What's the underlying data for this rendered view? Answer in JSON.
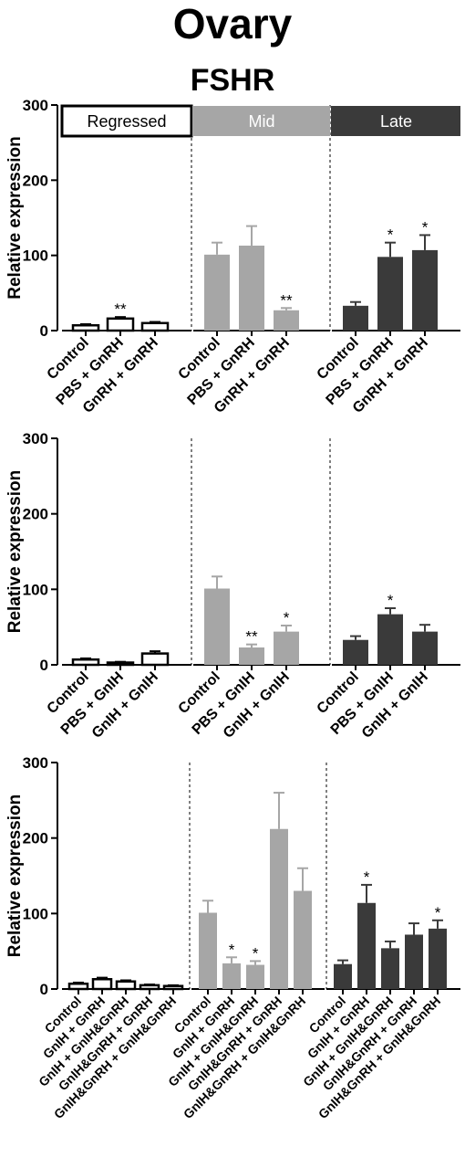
{
  "title": "Ovary",
  "subtitle": "FSHR",
  "groups": [
    {
      "label": "Regressed",
      "fill": "#ffffff",
      "text_color": "#000000"
    },
    {
      "label": "Mid",
      "fill": "#a6a6a6",
      "text_color": "#ffffff"
    },
    {
      "label": "Late",
      "fill": "#3a3a3a",
      "text_color": "#ffffff"
    }
  ],
  "colors": {
    "regressed": "#ffffff",
    "mid": "#a6a6a6",
    "late": "#3a3a3a",
    "axis": "#000000"
  },
  "chart_data": [
    {
      "type": "bar",
      "ylabel": "Relative expression",
      "ylim": [
        0,
        300
      ],
      "yticks": [
        0,
        100,
        200,
        300
      ],
      "groups": [
        {
          "name": "Regressed",
          "categories": [
            "Control",
            "PBS + GnRH",
            "GnRH + GnRH"
          ],
          "values": [
            7,
            16,
            10
          ],
          "errors": [
            1.5,
            2,
            1.5
          ],
          "sig": [
            "",
            "**",
            ""
          ]
        },
        {
          "name": "Mid",
          "categories": [
            "Control",
            "PBS + GnRH",
            "GnRH + GnRH"
          ],
          "values": [
            101,
            113,
            27
          ],
          "errors": [
            16,
            26,
            3
          ],
          "sig": [
            "",
            "",
            "**"
          ]
        },
        {
          "name": "Late",
          "categories": [
            "Control",
            "PBS + GnRH",
            "GnRH + GnRH"
          ],
          "values": [
            33,
            98,
            107
          ],
          "errors": [
            5,
            19,
            20
          ],
          "sig": [
            "",
            "*",
            "*"
          ]
        }
      ]
    },
    {
      "type": "bar",
      "ylabel": "Relative expression",
      "ylim": [
        0,
        300
      ],
      "yticks": [
        0,
        100,
        200,
        300
      ],
      "groups": [
        {
          "name": "Regressed",
          "categories": [
            "Control",
            "PBS + GnIH",
            "GnIH + GnIH"
          ],
          "values": [
            7,
            3,
            15
          ],
          "errors": [
            1.5,
            1,
            3
          ],
          "sig": [
            "",
            "",
            ""
          ]
        },
        {
          "name": "Mid",
          "categories": [
            "Control",
            "PBS + GnIH",
            "GnIH + GnIH"
          ],
          "values": [
            101,
            23,
            44
          ],
          "errors": [
            16,
            4,
            8
          ],
          "sig": [
            "",
            "**",
            "*"
          ]
        },
        {
          "name": "Late",
          "categories": [
            "Control",
            "PBS + GnIH",
            "GnIH + GnIH"
          ],
          "values": [
            33,
            67,
            44
          ],
          "errors": [
            5,
            8,
            9
          ],
          "sig": [
            "",
            "*",
            ""
          ]
        }
      ]
    },
    {
      "type": "bar",
      "ylabel": "Relative expression",
      "ylim": [
        0,
        300
      ],
      "yticks": [
        0,
        100,
        200,
        300
      ],
      "groups": [
        {
          "name": "Regressed",
          "categories": [
            "Control",
            "GnIH + GnRH",
            "GnIH + GnIH&GnRH",
            "GnIH&GnRH + GnRH",
            "GnIH&GnRH + GnIH&GnRH"
          ],
          "values": [
            7,
            13,
            10,
            5,
            4
          ],
          "errors": [
            1.5,
            2,
            1.5,
            1,
            1
          ],
          "sig": [
            "",
            "",
            "",
            "",
            ""
          ]
        },
        {
          "name": "Mid",
          "categories": [
            "Control",
            "GnIH + GnRH",
            "GnIH + GnIH&GnRH",
            "GnIH&GnRH + GnRH",
            "GnIH&GnRH + GnIH&GnRH"
          ],
          "values": [
            101,
            34,
            32,
            212,
            130
          ],
          "errors": [
            16,
            8,
            5,
            48,
            30
          ],
          "sig": [
            "",
            "*",
            "*",
            "",
            ""
          ]
        },
        {
          "name": "Late",
          "categories": [
            "Control",
            "GnIH + GnRH",
            "GnIH + GnIH&GnRH",
            "GnIH&GnRH + GnRH",
            "GnIH&GnRH + GnIH&GnRH"
          ],
          "values": [
            33,
            114,
            54,
            72,
            80
          ],
          "errors": [
            5,
            24,
            9,
            15,
            11
          ],
          "sig": [
            "",
            "*",
            "",
            "",
            "*"
          ]
        }
      ]
    }
  ]
}
